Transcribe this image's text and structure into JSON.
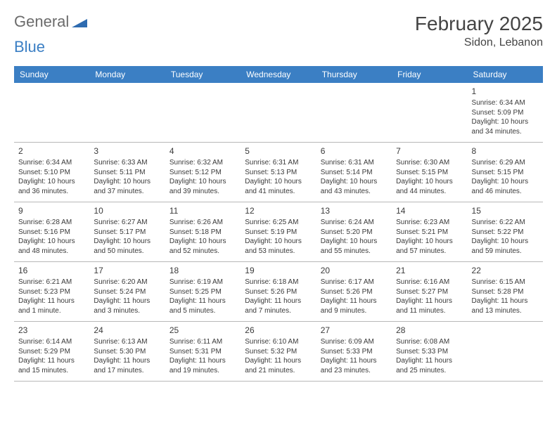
{
  "logo": {
    "word1": "General",
    "word2": "Blue"
  },
  "title": "February 2025",
  "location": "Sidon, Lebanon",
  "header_bg": "#3b7fc4",
  "weekdays": [
    "Sunday",
    "Monday",
    "Tuesday",
    "Wednesday",
    "Thursday",
    "Friday",
    "Saturday"
  ],
  "weeks": [
    [
      null,
      null,
      null,
      null,
      null,
      null,
      {
        "day": "1",
        "sunrise": "Sunrise: 6:34 AM",
        "sunset": "Sunset: 5:09 PM",
        "daylight1": "Daylight: 10 hours",
        "daylight2": "and 34 minutes."
      }
    ],
    [
      {
        "day": "2",
        "sunrise": "Sunrise: 6:34 AM",
        "sunset": "Sunset: 5:10 PM",
        "daylight1": "Daylight: 10 hours",
        "daylight2": "and 36 minutes."
      },
      {
        "day": "3",
        "sunrise": "Sunrise: 6:33 AM",
        "sunset": "Sunset: 5:11 PM",
        "daylight1": "Daylight: 10 hours",
        "daylight2": "and 37 minutes."
      },
      {
        "day": "4",
        "sunrise": "Sunrise: 6:32 AM",
        "sunset": "Sunset: 5:12 PM",
        "daylight1": "Daylight: 10 hours",
        "daylight2": "and 39 minutes."
      },
      {
        "day": "5",
        "sunrise": "Sunrise: 6:31 AM",
        "sunset": "Sunset: 5:13 PM",
        "daylight1": "Daylight: 10 hours",
        "daylight2": "and 41 minutes."
      },
      {
        "day": "6",
        "sunrise": "Sunrise: 6:31 AM",
        "sunset": "Sunset: 5:14 PM",
        "daylight1": "Daylight: 10 hours",
        "daylight2": "and 43 minutes."
      },
      {
        "day": "7",
        "sunrise": "Sunrise: 6:30 AM",
        "sunset": "Sunset: 5:15 PM",
        "daylight1": "Daylight: 10 hours",
        "daylight2": "and 44 minutes."
      },
      {
        "day": "8",
        "sunrise": "Sunrise: 6:29 AM",
        "sunset": "Sunset: 5:15 PM",
        "daylight1": "Daylight: 10 hours",
        "daylight2": "and 46 minutes."
      }
    ],
    [
      {
        "day": "9",
        "sunrise": "Sunrise: 6:28 AM",
        "sunset": "Sunset: 5:16 PM",
        "daylight1": "Daylight: 10 hours",
        "daylight2": "and 48 minutes."
      },
      {
        "day": "10",
        "sunrise": "Sunrise: 6:27 AM",
        "sunset": "Sunset: 5:17 PM",
        "daylight1": "Daylight: 10 hours",
        "daylight2": "and 50 minutes."
      },
      {
        "day": "11",
        "sunrise": "Sunrise: 6:26 AM",
        "sunset": "Sunset: 5:18 PM",
        "daylight1": "Daylight: 10 hours",
        "daylight2": "and 52 minutes."
      },
      {
        "day": "12",
        "sunrise": "Sunrise: 6:25 AM",
        "sunset": "Sunset: 5:19 PM",
        "daylight1": "Daylight: 10 hours",
        "daylight2": "and 53 minutes."
      },
      {
        "day": "13",
        "sunrise": "Sunrise: 6:24 AM",
        "sunset": "Sunset: 5:20 PM",
        "daylight1": "Daylight: 10 hours",
        "daylight2": "and 55 minutes."
      },
      {
        "day": "14",
        "sunrise": "Sunrise: 6:23 AM",
        "sunset": "Sunset: 5:21 PM",
        "daylight1": "Daylight: 10 hours",
        "daylight2": "and 57 minutes."
      },
      {
        "day": "15",
        "sunrise": "Sunrise: 6:22 AM",
        "sunset": "Sunset: 5:22 PM",
        "daylight1": "Daylight: 10 hours",
        "daylight2": "and 59 minutes."
      }
    ],
    [
      {
        "day": "16",
        "sunrise": "Sunrise: 6:21 AM",
        "sunset": "Sunset: 5:23 PM",
        "daylight1": "Daylight: 11 hours",
        "daylight2": "and 1 minute."
      },
      {
        "day": "17",
        "sunrise": "Sunrise: 6:20 AM",
        "sunset": "Sunset: 5:24 PM",
        "daylight1": "Daylight: 11 hours",
        "daylight2": "and 3 minutes."
      },
      {
        "day": "18",
        "sunrise": "Sunrise: 6:19 AM",
        "sunset": "Sunset: 5:25 PM",
        "daylight1": "Daylight: 11 hours",
        "daylight2": "and 5 minutes."
      },
      {
        "day": "19",
        "sunrise": "Sunrise: 6:18 AM",
        "sunset": "Sunset: 5:26 PM",
        "daylight1": "Daylight: 11 hours",
        "daylight2": "and 7 minutes."
      },
      {
        "day": "20",
        "sunrise": "Sunrise: 6:17 AM",
        "sunset": "Sunset: 5:26 PM",
        "daylight1": "Daylight: 11 hours",
        "daylight2": "and 9 minutes."
      },
      {
        "day": "21",
        "sunrise": "Sunrise: 6:16 AM",
        "sunset": "Sunset: 5:27 PM",
        "daylight1": "Daylight: 11 hours",
        "daylight2": "and 11 minutes."
      },
      {
        "day": "22",
        "sunrise": "Sunrise: 6:15 AM",
        "sunset": "Sunset: 5:28 PM",
        "daylight1": "Daylight: 11 hours",
        "daylight2": "and 13 minutes."
      }
    ],
    [
      {
        "day": "23",
        "sunrise": "Sunrise: 6:14 AM",
        "sunset": "Sunset: 5:29 PM",
        "daylight1": "Daylight: 11 hours",
        "daylight2": "and 15 minutes."
      },
      {
        "day": "24",
        "sunrise": "Sunrise: 6:13 AM",
        "sunset": "Sunset: 5:30 PM",
        "daylight1": "Daylight: 11 hours",
        "daylight2": "and 17 minutes."
      },
      {
        "day": "25",
        "sunrise": "Sunrise: 6:11 AM",
        "sunset": "Sunset: 5:31 PM",
        "daylight1": "Daylight: 11 hours",
        "daylight2": "and 19 minutes."
      },
      {
        "day": "26",
        "sunrise": "Sunrise: 6:10 AM",
        "sunset": "Sunset: 5:32 PM",
        "daylight1": "Daylight: 11 hours",
        "daylight2": "and 21 minutes."
      },
      {
        "day": "27",
        "sunrise": "Sunrise: 6:09 AM",
        "sunset": "Sunset: 5:33 PM",
        "daylight1": "Daylight: 11 hours",
        "daylight2": "and 23 minutes."
      },
      {
        "day": "28",
        "sunrise": "Sunrise: 6:08 AM",
        "sunset": "Sunset: 5:33 PM",
        "daylight1": "Daylight: 11 hours",
        "daylight2": "and 25 minutes."
      },
      null
    ]
  ]
}
